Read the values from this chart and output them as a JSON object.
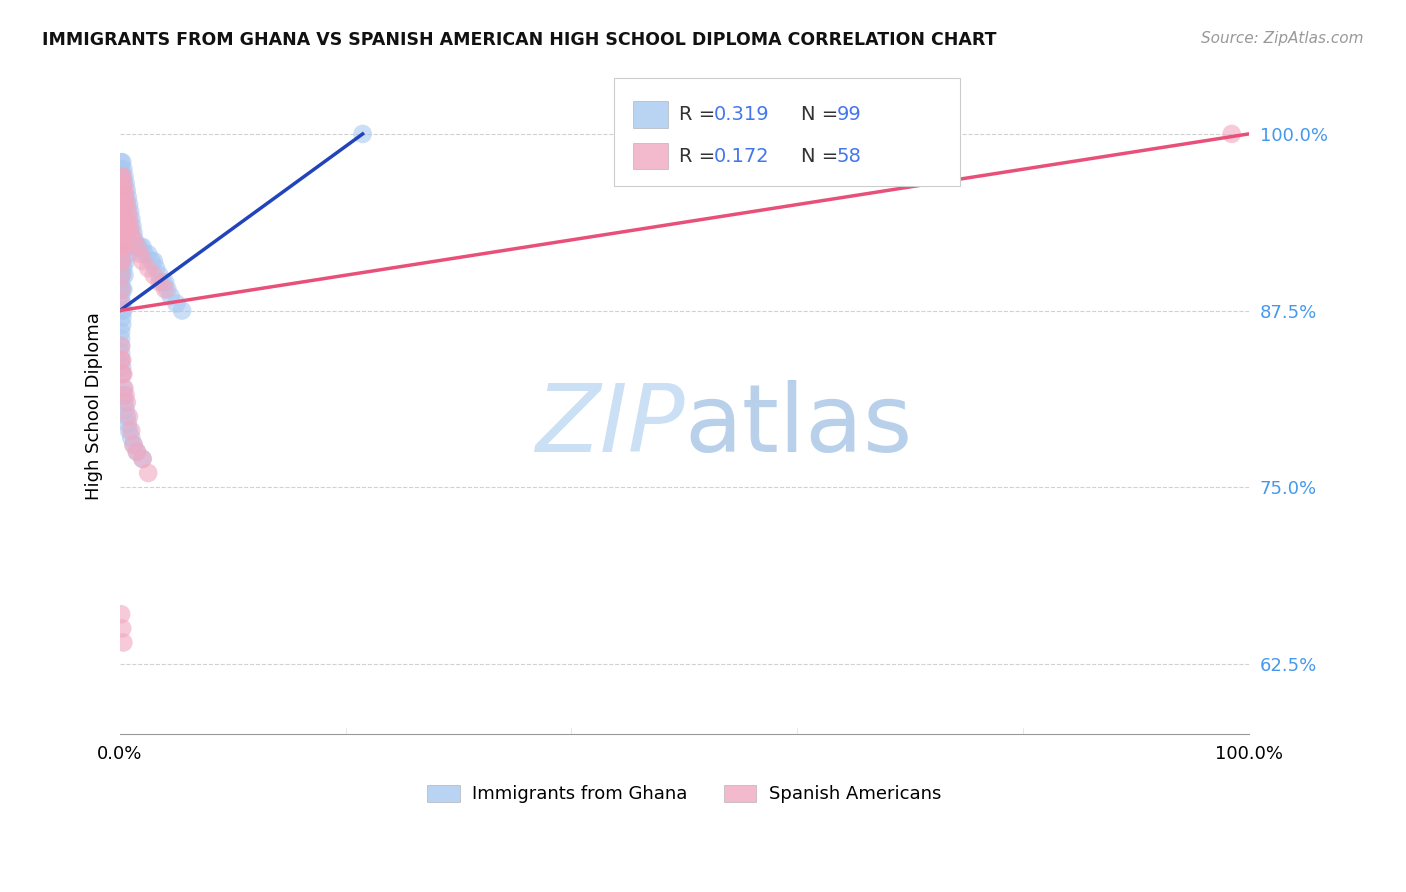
{
  "title": "IMMIGRANTS FROM GHANA VS SPANISH AMERICAN HIGH SCHOOL DIPLOMA CORRELATION CHART",
  "source": "Source: ZipAtlas.com",
  "ylabel": "High School Diploma",
  "ytick_labels": [
    "62.5%",
    "75.0%",
    "87.5%",
    "100.0%"
  ],
  "ytick_values": [
    0.625,
    0.75,
    0.875,
    1.0
  ],
  "xlim": [
    0.0,
    1.0
  ],
  "ylim": [
    0.575,
    1.04
  ],
  "legend_blue_R": "0.319",
  "legend_blue_N": "99",
  "legend_pink_R": "0.172",
  "legend_pink_N": "58",
  "legend_label_blue": "Immigrants from Ghana",
  "legend_label_pink": "Spanish Americans",
  "blue_scatter_color": "#a8c8f0",
  "pink_scatter_color": "#f0a8c0",
  "blue_line_color": "#2244bb",
  "pink_line_color": "#e8507a",
  "legend_text_color": "#4477ee",
  "right_label_color": "#4499ee",
  "watermark_zip_color": "#cce0f5",
  "watermark_atlas_color": "#b8d0ea",
  "ghana_x": [
    0.001,
    0.001,
    0.001,
    0.001,
    0.001,
    0.001,
    0.001,
    0.001,
    0.001,
    0.001,
    0.001,
    0.001,
    0.001,
    0.001,
    0.001,
    0.001,
    0.001,
    0.001,
    0.001,
    0.001,
    0.002,
    0.002,
    0.002,
    0.002,
    0.002,
    0.002,
    0.002,
    0.002,
    0.002,
    0.002,
    0.002,
    0.002,
    0.002,
    0.002,
    0.003,
    0.003,
    0.003,
    0.003,
    0.003,
    0.003,
    0.003,
    0.003,
    0.004,
    0.004,
    0.004,
    0.004,
    0.004,
    0.005,
    0.005,
    0.005,
    0.005,
    0.006,
    0.006,
    0.006,
    0.007,
    0.007,
    0.007,
    0.008,
    0.008,
    0.009,
    0.01,
    0.011,
    0.012,
    0.013,
    0.015,
    0.016,
    0.018,
    0.02,
    0.022,
    0.025,
    0.028,
    0.03,
    0.032,
    0.035,
    0.038,
    0.04,
    0.042,
    0.045,
    0.05,
    0.055,
    0.001,
    0.001,
    0.001,
    0.001,
    0.001,
    0.002,
    0.002,
    0.003,
    0.003,
    0.004,
    0.005,
    0.006,
    0.007,
    0.008,
    0.01,
    0.012,
    0.015,
    0.02,
    0.215
  ],
  "ghana_y": [
    0.98,
    0.975,
    0.97,
    0.965,
    0.96,
    0.955,
    0.95,
    0.945,
    0.94,
    0.935,
    0.93,
    0.925,
    0.92,
    0.915,
    0.91,
    0.905,
    0.9,
    0.895,
    0.89,
    0.885,
    0.98,
    0.97,
    0.96,
    0.95,
    0.94,
    0.93,
    0.92,
    0.91,
    0.9,
    0.89,
    0.88,
    0.875,
    0.87,
    0.865,
    0.975,
    0.965,
    0.95,
    0.935,
    0.92,
    0.905,
    0.89,
    0.875,
    0.97,
    0.955,
    0.94,
    0.92,
    0.9,
    0.965,
    0.95,
    0.93,
    0.91,
    0.96,
    0.94,
    0.92,
    0.955,
    0.935,
    0.915,
    0.95,
    0.93,
    0.945,
    0.94,
    0.935,
    0.93,
    0.925,
    0.92,
    0.92,
    0.92,
    0.92,
    0.915,
    0.915,
    0.91,
    0.91,
    0.905,
    0.9,
    0.895,
    0.895,
    0.89,
    0.885,
    0.88,
    0.875,
    0.86,
    0.855,
    0.85,
    0.845,
    0.84,
    0.835,
    0.83,
    0.82,
    0.815,
    0.81,
    0.805,
    0.8,
    0.795,
    0.79,
    0.785,
    0.78,
    0.775,
    0.77,
    1.0
  ],
  "spanish_x": [
    0.001,
    0.001,
    0.001,
    0.001,
    0.001,
    0.001,
    0.001,
    0.001,
    0.001,
    0.001,
    0.002,
    0.002,
    0.002,
    0.002,
    0.002,
    0.002,
    0.002,
    0.003,
    0.003,
    0.003,
    0.003,
    0.004,
    0.004,
    0.004,
    0.005,
    0.005,
    0.006,
    0.006,
    0.007,
    0.008,
    0.009,
    0.01,
    0.012,
    0.015,
    0.018,
    0.02,
    0.025,
    0.03,
    0.035,
    0.04,
    0.001,
    0.001,
    0.002,
    0.002,
    0.003,
    0.004,
    0.005,
    0.006,
    0.008,
    0.01,
    0.012,
    0.015,
    0.02,
    0.025,
    0.001,
    0.002,
    0.003,
    0.985
  ],
  "spanish_y": [
    0.97,
    0.96,
    0.95,
    0.94,
    0.93,
    0.92,
    0.91,
    0.9,
    0.89,
    0.88,
    0.97,
    0.96,
    0.95,
    0.94,
    0.93,
    0.92,
    0.91,
    0.965,
    0.95,
    0.935,
    0.92,
    0.96,
    0.94,
    0.92,
    0.955,
    0.935,
    0.95,
    0.93,
    0.945,
    0.94,
    0.935,
    0.93,
    0.925,
    0.92,
    0.915,
    0.91,
    0.905,
    0.9,
    0.895,
    0.89,
    0.85,
    0.84,
    0.84,
    0.83,
    0.83,
    0.82,
    0.815,
    0.81,
    0.8,
    0.79,
    0.78,
    0.775,
    0.77,
    0.76,
    0.66,
    0.65,
    0.64,
    1.0
  ]
}
